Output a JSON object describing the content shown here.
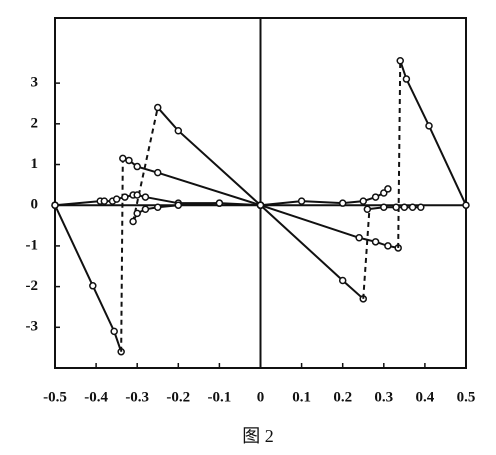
{
  "chart_data": {
    "type": "line",
    "caption": "图 2",
    "xlim": [
      -0.5,
      0.5
    ],
    "ylim": [
      -4,
      4.6
    ],
    "xticks": [
      -0.5,
      -0.4,
      -0.3,
      -0.2,
      -0.1,
      0,
      0.1,
      0.2,
      0.3,
      0.4,
      0.5
    ],
    "yticks": [
      -3,
      -2,
      -1,
      0,
      1,
      2,
      3
    ],
    "grid": false,
    "zero_lines": true,
    "series": [
      {
        "color": "#111",
        "dashed": false,
        "x": [
          -0.5,
          -0.408,
          -0.356,
          -0.339
        ],
        "values": [
          0,
          -1.98,
          -3.1,
          -3.6
        ]
      },
      {
        "color": "#111",
        "dashed": true,
        "x": [
          -0.339,
          -0.335
        ],
        "values": [
          -3.6,
          1.15
        ]
      },
      {
        "color": "#111",
        "dashed": false,
        "x": [
          -0.335,
          -0.32,
          -0.3,
          -0.25,
          0
        ],
        "values": [
          1.15,
          1.1,
          0.95,
          0.8,
          0
        ]
      },
      {
        "color": "#111",
        "dashed": true,
        "x": [
          -0.31,
          -0.25
        ],
        "values": [
          -0.4,
          2.4
        ]
      },
      {
        "color": "#111",
        "dashed": false,
        "x": [
          -0.25,
          -0.2,
          0
        ],
        "values": [
          2.4,
          1.83,
          0
        ]
      },
      {
        "color": "#111",
        "dashed": false,
        "x": [
          -0.5,
          -0.39,
          -0.38,
          -0.36,
          -0.35,
          -0.33,
          -0.31,
          -0.3,
          -0.28,
          -0.2,
          -0.1,
          0
        ],
        "values": [
          0,
          0.1,
          0.1,
          0.1,
          0.15,
          0.2,
          0.25,
          0.25,
          0.2,
          0.05,
          0.05,
          0
        ]
      },
      {
        "color": "#111",
        "dashed": false,
        "x": [
          -0.31,
          -0.3,
          -0.28,
          -0.25,
          -0.2,
          -0.1
        ],
        "values": [
          -0.4,
          -0.2,
          -0.1,
          -0.05,
          0,
          0.05
        ]
      },
      {
        "color": "#111",
        "dashed": false,
        "x": [
          0,
          0.2,
          0.25
        ],
        "values": [
          0,
          -1.85,
          -2.3
        ]
      },
      {
        "color": "#111",
        "dashed": true,
        "x": [
          0.25,
          0.265
        ],
        "values": [
          -2.3,
          -0.1
        ]
      },
      {
        "color": "#111",
        "dashed": false,
        "x": [
          0,
          0.24,
          0.28,
          0.31,
          0.335
        ],
        "values": [
          0,
          -0.8,
          -0.9,
          -1.0,
          -1.05
        ]
      },
      {
        "color": "#111",
        "dashed": true,
        "x": [
          0.335,
          0.34
        ],
        "values": [
          -1.05,
          3.55
        ]
      },
      {
        "color": "#111",
        "dashed": false,
        "x": [
          0.34,
          0.355,
          0.41,
          0.5
        ],
        "values": [
          3.55,
          3.1,
          1.95,
          0
        ]
      },
      {
        "color": "#111",
        "dashed": false,
        "x": [
          0,
          0.1,
          0.2,
          0.25,
          0.28,
          0.3,
          0.31
        ],
        "values": [
          0,
          0.1,
          0.05,
          0.1,
          0.2,
          0.3,
          0.4
        ]
      },
      {
        "color": "#111",
        "dashed": false,
        "x": [
          0.26,
          0.3,
          0.33,
          0.35,
          0.37,
          0.39
        ],
        "values": [
          -0.1,
          -0.05,
          -0.05,
          -0.05,
          -0.05,
          -0.05
        ]
      }
    ]
  }
}
